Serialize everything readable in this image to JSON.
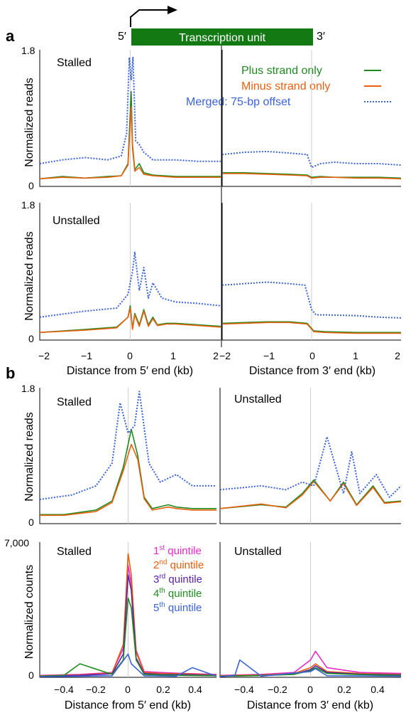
{
  "colors": {
    "plus": "#1f8b1f",
    "minus": "#e8600f",
    "merged": "#3b63d6",
    "q1": "#e52ac9",
    "q2": "#e8600f",
    "q3": "#5a1fb0",
    "q4": "#1f8b1f",
    "q5": "#3b63d6",
    "black": "#111111",
    "unit_bar": "#137a13",
    "gridline": "#cfcfcf"
  },
  "header": {
    "panel_a_letter": "a",
    "panel_b_letter": "b",
    "five_prime": "5′",
    "three_prime": "3′",
    "unit_label": "Transcription unit",
    "arrow_icon": "tss-arrow-icon"
  },
  "legend_a": {
    "plus": "Plus strand only",
    "minus": "Minus strand only",
    "merged": "Merged: 75-bp offset"
  },
  "legend_b": {
    "q1_num": "1",
    "q1_sup": "st",
    "q1_word": " quintile",
    "q2_num": "2",
    "q2_sup": "nd",
    "q2_word": " quintile",
    "q3_num": "3",
    "q3_sup": "rd",
    "q3_word": " quintile",
    "q4_num": "4",
    "q4_sup": "th",
    "q4_word": " quintile",
    "q5_num": "5",
    "q5_sup": "th",
    "q5_word": " quintile"
  },
  "chart_data": [
    {
      "id": "a-stalled-5p",
      "type": "line",
      "title": "Stalled",
      "ylabel": "Normalized reads",
      "ylim": [
        0,
        1.8
      ],
      "xlim": [
        -2,
        2
      ],
      "xlabel": "Distance from 5′ end (kb)",
      "series": [
        {
          "name": "Plus strand only",
          "x": [
            -2,
            -1.5,
            -1,
            -0.5,
            -0.2,
            -0.05,
            0.02,
            0.05,
            0.1,
            0.2,
            0.3,
            0.5,
            1,
            1.5,
            2
          ],
          "y": [
            0.1,
            0.13,
            0.11,
            0.13,
            0.14,
            0.3,
            1.25,
            0.55,
            0.22,
            0.3,
            0.18,
            0.15,
            0.13,
            0.13,
            0.13
          ]
        },
        {
          "name": "Minus strand only",
          "x": [
            -2,
            -1.5,
            -1,
            -0.5,
            -0.2,
            -0.05,
            0.02,
            0.05,
            0.1,
            0.2,
            0.3,
            0.5,
            1,
            1.5,
            2
          ],
          "y": [
            0.1,
            0.12,
            0.11,
            0.12,
            0.14,
            0.28,
            1.05,
            0.5,
            0.2,
            0.25,
            0.16,
            0.14,
            0.12,
            0.12,
            0.12
          ]
        },
        {
          "name": "Merged: 75-bp offset",
          "x": [
            -2,
            -1.5,
            -1,
            -0.5,
            -0.2,
            -0.08,
            -0.02,
            0.02,
            0.06,
            0.12,
            0.2,
            0.3,
            0.5,
            1,
            1.5,
            2
          ],
          "y": [
            0.3,
            0.35,
            0.38,
            0.35,
            0.4,
            0.7,
            1.7,
            1.4,
            1.7,
            0.6,
            0.55,
            0.45,
            0.35,
            0.35,
            0.33,
            0.33
          ]
        }
      ]
    },
    {
      "id": "a-stalled-3p",
      "type": "line",
      "xlim": [
        -2,
        2
      ],
      "ylim": [
        0,
        1.8
      ],
      "xlabel": "Distance from 3′ end (kb)",
      "series": [
        {
          "name": "Plus strand only",
          "x": [
            -2,
            -1.5,
            -1,
            -0.5,
            -0.1,
            0,
            0.2,
            0.5,
            1,
            1.5,
            2
          ],
          "y": [
            0.18,
            0.18,
            0.17,
            0.16,
            0.15,
            0.12,
            0.13,
            0.12,
            0.12,
            0.12,
            0.11
          ]
        },
        {
          "name": "Minus strand only",
          "x": [
            -2,
            -1.5,
            -1,
            -0.5,
            -0.1,
            0,
            0.2,
            0.5,
            1,
            1.5,
            2
          ],
          "y": [
            0.17,
            0.17,
            0.16,
            0.15,
            0.14,
            0.11,
            0.12,
            0.12,
            0.11,
            0.11,
            0.1
          ]
        },
        {
          "name": "Merged: 75-bp offset",
          "x": [
            -2,
            -1.5,
            -1,
            -0.5,
            -0.1,
            0,
            0.2,
            0.5,
            1,
            1.5,
            2
          ],
          "y": [
            0.42,
            0.45,
            0.46,
            0.44,
            0.42,
            0.25,
            0.3,
            0.32,
            0.3,
            0.3,
            0.28
          ]
        }
      ]
    },
    {
      "id": "a-unstalled-5p",
      "type": "line",
      "title": "Unstalled",
      "ylabel": "Normalized reads",
      "ylim": [
        0,
        1.8
      ],
      "xlim": [
        -2,
        2
      ],
      "xlabel": "Distance from 5′ end (kb)",
      "series": [
        {
          "name": "Plus strand only",
          "x": [
            -2,
            -1,
            -0.3,
            -0.05,
            0,
            0.05,
            0.1,
            0.2,
            0.3,
            0.4,
            0.5,
            0.6,
            0.8,
            1,
            1.5,
            2
          ],
          "y": [
            0.1,
            0.14,
            0.17,
            0.3,
            0.45,
            0.15,
            0.35,
            0.2,
            0.4,
            0.2,
            0.3,
            0.2,
            0.22,
            0.22,
            0.2,
            0.18
          ]
        },
        {
          "name": "Minus strand only",
          "x": [
            -2,
            -1,
            -0.3,
            -0.05,
            0,
            0.05,
            0.1,
            0.2,
            0.3,
            0.4,
            0.5,
            0.6,
            0.8,
            1,
            1.5,
            2
          ],
          "y": [
            0.1,
            0.13,
            0.16,
            0.3,
            0.42,
            0.14,
            0.33,
            0.18,
            0.38,
            0.18,
            0.28,
            0.19,
            0.21,
            0.21,
            0.19,
            0.17
          ]
        },
        {
          "name": "Merged: 75-bp offset",
          "x": [
            -2,
            -1,
            -0.3,
            -0.05,
            0.05,
            0.1,
            0.2,
            0.3,
            0.4,
            0.5,
            0.7,
            1,
            1.5,
            2
          ],
          "y": [
            0.3,
            0.38,
            0.42,
            0.6,
            0.9,
            1.15,
            0.65,
            0.95,
            0.55,
            0.75,
            0.55,
            0.5,
            0.48,
            0.45
          ]
        }
      ]
    },
    {
      "id": "a-unstalled-3p",
      "type": "line",
      "xlim": [
        -2,
        2
      ],
      "ylim": [
        0,
        1.8
      ],
      "xlabel": "Distance from 3′ end (kb)",
      "series": [
        {
          "name": "Plus strand only",
          "x": [
            -2,
            -1.5,
            -1,
            -0.5,
            -0.1,
            0.05,
            0.3,
            1,
            1.5,
            2
          ],
          "y": [
            0.22,
            0.23,
            0.24,
            0.24,
            0.22,
            0.12,
            0.11,
            0.1,
            0.1,
            0.1
          ]
        },
        {
          "name": "Minus strand only",
          "x": [
            -2,
            -1.5,
            -1,
            -0.5,
            -0.1,
            0.05,
            0.3,
            1,
            1.5,
            2
          ],
          "y": [
            0.21,
            0.22,
            0.23,
            0.23,
            0.21,
            0.11,
            0.1,
            0.09,
            0.09,
            0.09
          ]
        },
        {
          "name": "Merged: 75-bp offset",
          "x": [
            -2,
            -1.5,
            -1,
            -0.5,
            -0.15,
            0,
            0.1,
            0.3,
            1,
            1.5,
            2
          ],
          "y": [
            0.72,
            0.74,
            0.76,
            0.74,
            0.72,
            0.4,
            0.33,
            0.33,
            0.32,
            0.3,
            0.29
          ]
        }
      ]
    },
    {
      "id": "b-stalled-5p",
      "type": "line",
      "title": "Stalled",
      "ylabel": "Normalized reads",
      "ylim": [
        0,
        1.8
      ],
      "xlim": [
        -0.55,
        0.55
      ],
      "series": [
        {
          "name": "Plus strand only",
          "x": [
            -0.55,
            -0.4,
            -0.2,
            -0.1,
            -0.03,
            0.02,
            0.06,
            0.1,
            0.15,
            0.25,
            0.3,
            0.4,
            0.55
          ],
          "y": [
            0.12,
            0.12,
            0.18,
            0.3,
            0.75,
            1.25,
            0.9,
            0.35,
            0.2,
            0.25,
            0.22,
            0.2,
            0.2
          ]
        },
        {
          "name": "Minus strand only",
          "x": [
            -0.55,
            -0.4,
            -0.2,
            -0.1,
            -0.03,
            0.02,
            0.06,
            0.1,
            0.15,
            0.25,
            0.3,
            0.4,
            0.55
          ],
          "y": [
            0.11,
            0.11,
            0.16,
            0.28,
            0.7,
            1.05,
            0.85,
            0.33,
            0.18,
            0.22,
            0.2,
            0.18,
            0.18
          ]
        },
        {
          "name": "Merged: 75-bp offset",
          "x": [
            -0.55,
            -0.35,
            -0.2,
            -0.1,
            -0.05,
            0.0,
            0.04,
            0.07,
            0.13,
            0.2,
            0.3,
            0.4,
            0.55
          ],
          "y": [
            0.32,
            0.38,
            0.5,
            0.8,
            1.6,
            1.2,
            1.3,
            1.75,
            0.8,
            0.55,
            0.65,
            0.5,
            0.5
          ]
        }
      ]
    },
    {
      "id": "b-unstalled-3p-reads",
      "type": "line",
      "title": "Unstalled",
      "ylim": [
        0,
        1.8
      ],
      "xlim": [
        -0.55,
        0.55
      ],
      "series": [
        {
          "name": "Plus strand only",
          "x": [
            -0.55,
            -0.3,
            -0.15,
            -0.05,
            0.02,
            0.12,
            0.2,
            0.28,
            0.38,
            0.45,
            0.55
          ],
          "y": [
            0.2,
            0.25,
            0.22,
            0.4,
            0.58,
            0.3,
            0.55,
            0.25,
            0.5,
            0.28,
            0.3
          ]
        },
        {
          "name": "Minus strand only",
          "x": [
            -0.55,
            -0.3,
            -0.15,
            -0.05,
            0.02,
            0.12,
            0.2,
            0.28,
            0.38,
            0.45,
            0.55
          ],
          "y": [
            0.2,
            0.26,
            0.21,
            0.38,
            0.56,
            0.3,
            0.53,
            0.24,
            0.48,
            0.27,
            0.29
          ]
        },
        {
          "name": "Merged: 75-bp offset",
          "x": [
            -0.55,
            -0.3,
            -0.15,
            -0.05,
            0.02,
            0.1,
            0.2,
            0.25,
            0.3,
            0.4,
            0.48,
            0.55
          ],
          "y": [
            0.45,
            0.5,
            0.45,
            0.55,
            0.5,
            1.15,
            0.4,
            0.95,
            0.4,
            0.65,
            0.35,
            0.5
          ]
        }
      ]
    },
    {
      "id": "b-stalled-counts",
      "type": "line",
      "title": "Stalled",
      "ylabel": "Normalized counts",
      "ylim": [
        0,
        7000
      ],
      "xlim": [
        -0.55,
        0.55
      ],
      "xlabel": "Distance from 5′ end (kb)",
      "series": [
        {
          "name": "1st quintile",
          "x": [
            -0.55,
            -0.3,
            -0.1,
            -0.03,
            0.0,
            0.02,
            0.05,
            0.1,
            0.2,
            0.35,
            0.55
          ],
          "y": [
            100,
            150,
            250,
            1500,
            5800,
            4800,
            1400,
            300,
            250,
            200,
            150
          ]
        },
        {
          "name": "2nd quintile",
          "x": [
            -0.55,
            -0.3,
            -0.1,
            -0.03,
            0.0,
            0.02,
            0.05,
            0.1,
            0.2,
            0.35,
            0.55
          ],
          "y": [
            80,
            120,
            220,
            1700,
            6400,
            5300,
            1300,
            250,
            200,
            180,
            120
          ]
        },
        {
          "name": "3rd quintile",
          "x": [
            -0.55,
            -0.3,
            -0.1,
            -0.03,
            0.0,
            0.02,
            0.05,
            0.1,
            0.2,
            0.35,
            0.55
          ],
          "y": [
            60,
            100,
            180,
            1200,
            5300,
            4500,
            1000,
            200,
            150,
            140,
            100
          ]
        },
        {
          "name": "4th quintile",
          "x": [
            -0.55,
            -0.4,
            -0.3,
            -0.1,
            -0.03,
            0.0,
            0.02,
            0.05,
            0.1,
            0.2,
            0.35,
            0.55
          ],
          "y": [
            60,
            100,
            700,
            150,
            900,
            4100,
            3600,
            900,
            150,
            120,
            100,
            80
          ]
        },
        {
          "name": "5th quintile",
          "x": [
            -0.55,
            -0.3,
            -0.1,
            0.0,
            0.02,
            0.1,
            0.3,
            0.4,
            0.55
          ],
          "y": [
            40,
            60,
            80,
            1200,
            700,
            80,
            60,
            500,
            60
          ]
        }
      ]
    },
    {
      "id": "b-unstalled-counts",
      "type": "line",
      "title": "Unstalled",
      "ylim": [
        0,
        7000
      ],
      "xlim": [
        -0.55,
        0.55
      ],
      "xlabel": "Distance from 3′ end (kb)",
      "series": [
        {
          "name": "1st quintile",
          "x": [
            -0.55,
            -0.3,
            -0.1,
            0.0,
            0.03,
            0.1,
            0.3,
            0.55
          ],
          "y": [
            100,
            150,
            250,
            900,
            1350,
            500,
            250,
            200
          ]
        },
        {
          "name": "2nd quintile",
          "x": [
            -0.55,
            -0.3,
            -0.1,
            0.0,
            0.03,
            0.1,
            0.3,
            0.55
          ],
          "y": [
            80,
            120,
            200,
            500,
            700,
            300,
            200,
            150
          ]
        },
        {
          "name": "3rd quintile",
          "x": [
            -0.55,
            -0.3,
            -0.1,
            0.0,
            0.03,
            0.1,
            0.3,
            0.55
          ],
          "y": [
            60,
            100,
            160,
            400,
            600,
            250,
            160,
            120
          ]
        },
        {
          "name": "4th quintile",
          "x": [
            -0.55,
            -0.3,
            -0.1,
            0.0,
            0.03,
            0.1,
            0.3,
            0.55
          ],
          "y": [
            60,
            90,
            150,
            350,
            500,
            200,
            140,
            100
          ]
        },
        {
          "name": "5th quintile",
          "x": [
            -0.55,
            -0.46,
            -0.43,
            -0.3,
            0.0,
            0.03,
            0.1,
            0.55
          ],
          "y": [
            40,
            100,
            900,
            60,
            300,
            450,
            80,
            60
          ]
        }
      ]
    }
  ],
  "axis_labels": {
    "a_x_ticks": [
      "−2",
      "−1",
      "0",
      "1",
      "2"
    ],
    "a_x_ticks_right": [
      "−2",
      "−1",
      "0",
      "1",
      "2"
    ],
    "b_x_ticks": [
      "−0.4",
      "−0.2",
      "0",
      "0.2",
      "0.4"
    ],
    "a_y_top": "1.8",
    "a_y_zero": "0",
    "b_y_top": "1.8",
    "b_y_zero": "0",
    "b_counts_top": "7,000",
    "b_counts_zero": "0"
  }
}
